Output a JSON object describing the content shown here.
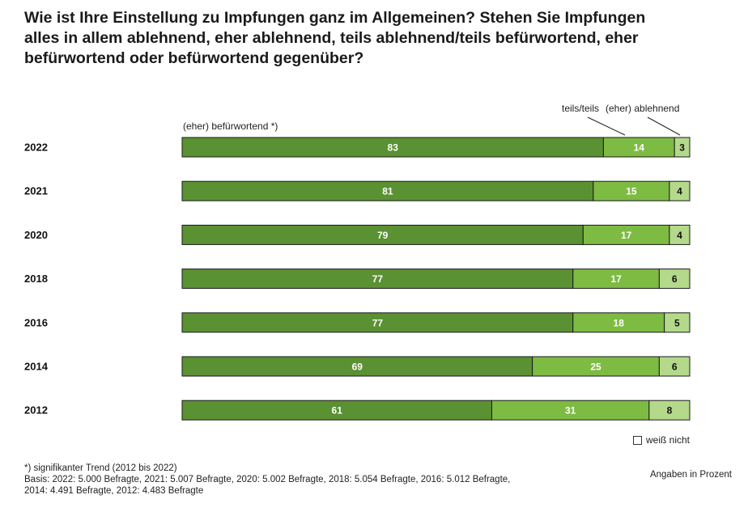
{
  "title": "Wie ist Ihre Einstellung zu Impfungen ganz im Allgemeinen? Stehen Sie Impfungen alles in allem ablehnend, eher ablehnend, teils ablehnend/teils befürwortend, eher befürwortend oder befürwortend gegenüber?",
  "chart_data": {
    "type": "bar",
    "orientation": "horizontal",
    "stacked": true,
    "categories": [
      "2022",
      "2021",
      "2020",
      "2018",
      "2016",
      "2014",
      "2012"
    ],
    "series": [
      {
        "name": "(eher) befürwortend *)",
        "values": [
          83,
          81,
          79,
          77,
          77,
          69,
          61
        ],
        "color": "#5a9132"
      },
      {
        "name": "teils/teils",
        "values": [
          14,
          15,
          17,
          17,
          18,
          25,
          31
        ],
        "color": "#7dbb42"
      },
      {
        "name": "(eher) ablehnend",
        "values": [
          3,
          4,
          4,
          6,
          5,
          6,
          8
        ],
        "color": "#b4d98a"
      }
    ],
    "legend_extra": "weiß nicht",
    "xlim": [
      0,
      100
    ],
    "grid": false
  },
  "footnote": {
    "line1": "*) signifikanter Trend (2012 bis 2022)",
    "line2": "Basis: 2022: 5.000 Befragte, 2021: 5.007 Befragte, 2020: 5.002 Befragte, 2018: 5.054 Befragte, 2016: 5.012 Befragte,",
    "line3": "2014: 4.491 Befragte, 2012: 4.483 Befragte"
  },
  "unit_note": "Angaben in Prozent",
  "colors": {
    "dark_green": "#5a9132",
    "mid_green": "#7dbb42",
    "light_green": "#b4d98a",
    "text_on_dark": "#ffffff",
    "text_on_light": "#111111"
  }
}
